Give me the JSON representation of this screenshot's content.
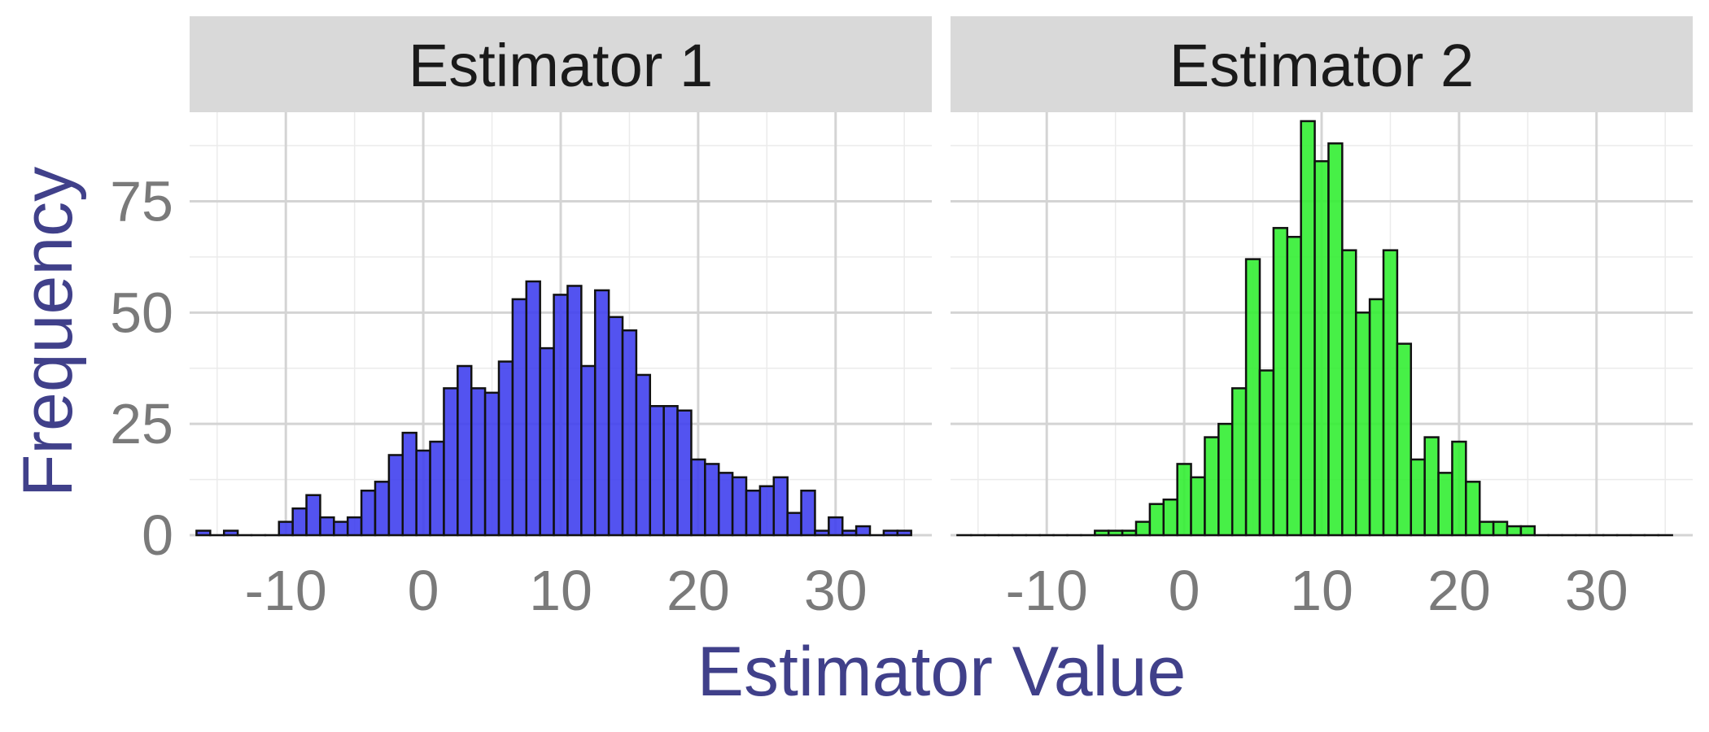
{
  "chart_data": {
    "type": "bar",
    "xlabel": "Estimator Value",
    "ylabel": "Frequency",
    "xlim": [
      -17,
      37
    ],
    "ylim": [
      0,
      95
    ],
    "x_ticks": [
      -10,
      0,
      10,
      20,
      30
    ],
    "y_ticks": [
      0,
      25,
      50,
      75
    ],
    "bin_width": 1,
    "grid": true,
    "panels": [
      {
        "title": "Estimator 1",
        "color": "#4040ee",
        "bins": [
          {
            "x": -16,
            "count": 1
          },
          {
            "x": -15,
            "count": 0
          },
          {
            "x": -14,
            "count": 1
          },
          {
            "x": -13,
            "count": 0
          },
          {
            "x": -12,
            "count": 0
          },
          {
            "x": -11,
            "count": 0
          },
          {
            "x": -10,
            "count": 3
          },
          {
            "x": -9,
            "count": 6
          },
          {
            "x": -8,
            "count": 9
          },
          {
            "x": -7,
            "count": 4
          },
          {
            "x": -6,
            "count": 3
          },
          {
            "x": -5,
            "count": 4
          },
          {
            "x": -4,
            "count": 10
          },
          {
            "x": -3,
            "count": 12
          },
          {
            "x": -2,
            "count": 18
          },
          {
            "x": -1,
            "count": 23
          },
          {
            "x": 0,
            "count": 19
          },
          {
            "x": 1,
            "count": 21
          },
          {
            "x": 2,
            "count": 33
          },
          {
            "x": 3,
            "count": 38
          },
          {
            "x": 4,
            "count": 33
          },
          {
            "x": 5,
            "count": 32
          },
          {
            "x": 6,
            "count": 39
          },
          {
            "x": 7,
            "count": 53
          },
          {
            "x": 8,
            "count": 57
          },
          {
            "x": 9,
            "count": 42
          },
          {
            "x": 10,
            "count": 54
          },
          {
            "x": 11,
            "count": 56
          },
          {
            "x": 12,
            "count": 38
          },
          {
            "x": 13,
            "count": 55
          },
          {
            "x": 14,
            "count": 49
          },
          {
            "x": 15,
            "count": 46
          },
          {
            "x": 16,
            "count": 36
          },
          {
            "x": 17,
            "count": 29
          },
          {
            "x": 18,
            "count": 29
          },
          {
            "x": 19,
            "count": 28
          },
          {
            "x": 20,
            "count": 17
          },
          {
            "x": 21,
            "count": 16
          },
          {
            "x": 22,
            "count": 14
          },
          {
            "x": 23,
            "count": 13
          },
          {
            "x": 24,
            "count": 10
          },
          {
            "x": 25,
            "count": 11
          },
          {
            "x": 26,
            "count": 13
          },
          {
            "x": 27,
            "count": 5
          },
          {
            "x": 28,
            "count": 10
          },
          {
            "x": 29,
            "count": 1
          },
          {
            "x": 30,
            "count": 4
          },
          {
            "x": 31,
            "count": 1
          },
          {
            "x": 32,
            "count": 2
          },
          {
            "x": 33,
            "count": 0
          },
          {
            "x": 34,
            "count": 1
          },
          {
            "x": 35,
            "count": 1
          }
        ]
      },
      {
        "title": "Estimator 2",
        "color": "#33ee33",
        "bins": [
          {
            "x": -16,
            "count": 0
          },
          {
            "x": -15,
            "count": 0
          },
          {
            "x": -14,
            "count": 0
          },
          {
            "x": -13,
            "count": 0
          },
          {
            "x": -12,
            "count": 0
          },
          {
            "x": -11,
            "count": 0
          },
          {
            "x": -10,
            "count": 0
          },
          {
            "x": -9,
            "count": 0
          },
          {
            "x": -8,
            "count": 0
          },
          {
            "x": -7,
            "count": 0
          },
          {
            "x": -6,
            "count": 1
          },
          {
            "x": -5,
            "count": 1
          },
          {
            "x": -4,
            "count": 1
          },
          {
            "x": -3,
            "count": 3
          },
          {
            "x": -2,
            "count": 7
          },
          {
            "x": -1,
            "count": 8
          },
          {
            "x": 0,
            "count": 16
          },
          {
            "x": 1,
            "count": 13
          },
          {
            "x": 2,
            "count": 22
          },
          {
            "x": 3,
            "count": 25
          },
          {
            "x": 4,
            "count": 33
          },
          {
            "x": 5,
            "count": 62
          },
          {
            "x": 6,
            "count": 37
          },
          {
            "x": 7,
            "count": 69
          },
          {
            "x": 8,
            "count": 67
          },
          {
            "x": 9,
            "count": 93
          },
          {
            "x": 10,
            "count": 84
          },
          {
            "x": 11,
            "count": 88
          },
          {
            "x": 12,
            "count": 64
          },
          {
            "x": 13,
            "count": 50
          },
          {
            "x": 14,
            "count": 53
          },
          {
            "x": 15,
            "count": 64
          },
          {
            "x": 16,
            "count": 43
          },
          {
            "x": 17,
            "count": 17
          },
          {
            "x": 18,
            "count": 22
          },
          {
            "x": 19,
            "count": 14
          },
          {
            "x": 20,
            "count": 21
          },
          {
            "x": 21,
            "count": 12
          },
          {
            "x": 22,
            "count": 3
          },
          {
            "x": 23,
            "count": 3
          },
          {
            "x": 24,
            "count": 2
          },
          {
            "x": 25,
            "count": 2
          },
          {
            "x": 26,
            "count": 0
          },
          {
            "x": 27,
            "count": 0
          },
          {
            "x": 28,
            "count": 0
          },
          {
            "x": 29,
            "count": 0
          },
          {
            "x": 30,
            "count": 0
          },
          {
            "x": 31,
            "count": 0
          },
          {
            "x": 32,
            "count": 0
          },
          {
            "x": 33,
            "count": 0
          },
          {
            "x": 34,
            "count": 0
          },
          {
            "x": 35,
            "count": 0
          }
        ]
      }
    ]
  }
}
